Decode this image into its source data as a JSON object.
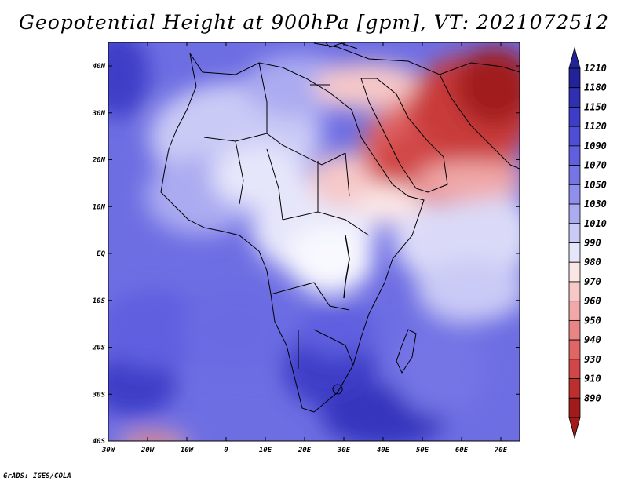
{
  "title": "Geopotential Height at 900hPa [gpm], VT: 2021072512",
  "footer": "GrADS: IGES/COLA",
  "map": {
    "lat_labels": [
      "40N",
      "30N",
      "20N",
      "10N",
      "EQ",
      "10S",
      "20S",
      "30S",
      "40S"
    ],
    "lon_labels": [
      "30W",
      "20W",
      "10W",
      "0",
      "10E",
      "20E",
      "30E",
      "40E",
      "50E",
      "60E",
      "70E"
    ],
    "region": "Africa, Arabian Peninsula and Middle East"
  },
  "colorbar": {
    "labels": [
      "1210",
      "1180",
      "1150",
      "1120",
      "1090",
      "1070",
      "1050",
      "1030",
      "1010",
      "990",
      "980",
      "970",
      "960",
      "950",
      "940",
      "930",
      "910",
      "890"
    ],
    "colors": [
      "#22229a",
      "#2f2fb3",
      "#3d3dc7",
      "#4d4dd6",
      "#5f5fe0",
      "#7575e6",
      "#8f8fec",
      "#ababf1",
      "#cacaf6",
      "#e6e6fb",
      "#fbe6e6",
      "#f6c8c8",
      "#f0a8a8",
      "#ea8585",
      "#e06565",
      "#d14747",
      "#bd2e2e",
      "#a11b1b"
    ]
  }
}
